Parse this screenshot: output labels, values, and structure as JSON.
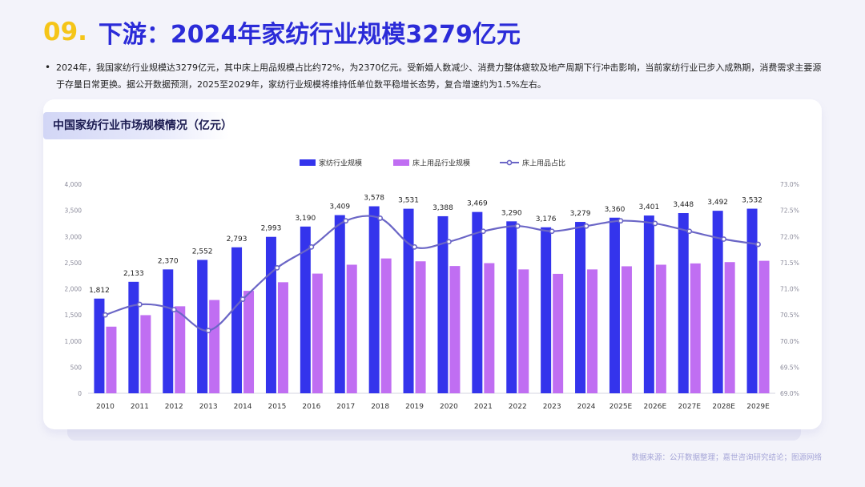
{
  "header": {
    "number": "09.",
    "title": "下游：2024年家纺行业规模3279亿元"
  },
  "summary": {
    "bullet": "•",
    "text": "2024年，我国家纺行业规模达3279亿元，其中床上用品规模占比约72%，为2370亿元。受新婚人数减少、消费力整体疲软及地产周期下行冲击影响，当前家纺行业已步入成熟期，消费需求主要源于存量日常更换。据公开数据预测，2025至2029年，家纺行业规模将维持低单位数平稳增长态势，复合增速约为1.5%左右。"
  },
  "card": {
    "title": "中国家纺行业市场规模情况（亿元）"
  },
  "source": "数据来源：公开数据整理；嘉世咨询研究结论；图源网络",
  "colors": {
    "bar_primary": "#3434ec",
    "bar_secondary": "#c06ef2",
    "line": "#6b66c6",
    "title_accent": "#2b2bd8",
    "number_accent": "#f5c518"
  },
  "chart_data": {
    "type": "bar",
    "categories": [
      "2010",
      "2011",
      "2012",
      "2013",
      "2014",
      "2015",
      "2016",
      "2017",
      "2018",
      "2019",
      "2020",
      "2021",
      "2022",
      "2023",
      "2024",
      "2025E",
      "2026E",
      "2027E",
      "2028E",
      "2029E"
    ],
    "series": [
      {
        "name": "家纺行业规模",
        "type": "bar",
        "axis": "left",
        "values": [
          1812,
          2133,
          2370,
          2552,
          2793,
          2993,
          3190,
          3409,
          3578,
          3531,
          3388,
          3469,
          3290,
          3176,
          3279,
          3360,
          3401,
          3448,
          3492,
          3532
        ],
        "labels": [
          "1,812",
          "2,133",
          "2,370",
          "2,552",
          "2,793",
          "2,993",
          "3,190",
          "3,409",
          "3,578",
          "3,531",
          "3,388",
          "3,469",
          "3,290",
          "3,176",
          "3,279",
          "3,360",
          "3,401",
          "3,448",
          "3,492",
          "3,532"
        ]
      },
      {
        "name": "床上用品行业规模",
        "type": "bar",
        "axis": "left",
        "values": [
          1275,
          1495,
          1665,
          1785,
          1960,
          2125,
          2290,
          2460,
          2580,
          2525,
          2435,
          2490,
          2370,
          2285,
          2370,
          2430,
          2460,
          2485,
          2510,
          2535
        ]
      },
      {
        "name": "床上用品占比",
        "type": "line",
        "axis": "right",
        "values": [
          70.5,
          70.7,
          70.6,
          70.2,
          70.8,
          71.4,
          71.8,
          72.3,
          72.35,
          71.8,
          71.9,
          72.1,
          72.2,
          72.1,
          72.2,
          72.3,
          72.25,
          72.1,
          71.95,
          71.85
        ]
      }
    ],
    "ylim_left": [
      0,
      4000
    ],
    "yticks_left": [
      "0",
      "500",
      "1,000",
      "1,500",
      "2,000",
      "2,500",
      "3,000",
      "3,500",
      "4,000"
    ],
    "ylim_right": [
      69.0,
      73.0
    ],
    "yticks_right": [
      "69.0%",
      "69.5%",
      "70.0%",
      "70.5%",
      "71.0%",
      "71.5%",
      "72.0%",
      "72.5%",
      "73.0%"
    ],
    "grid": false,
    "legend": "top-center"
  }
}
